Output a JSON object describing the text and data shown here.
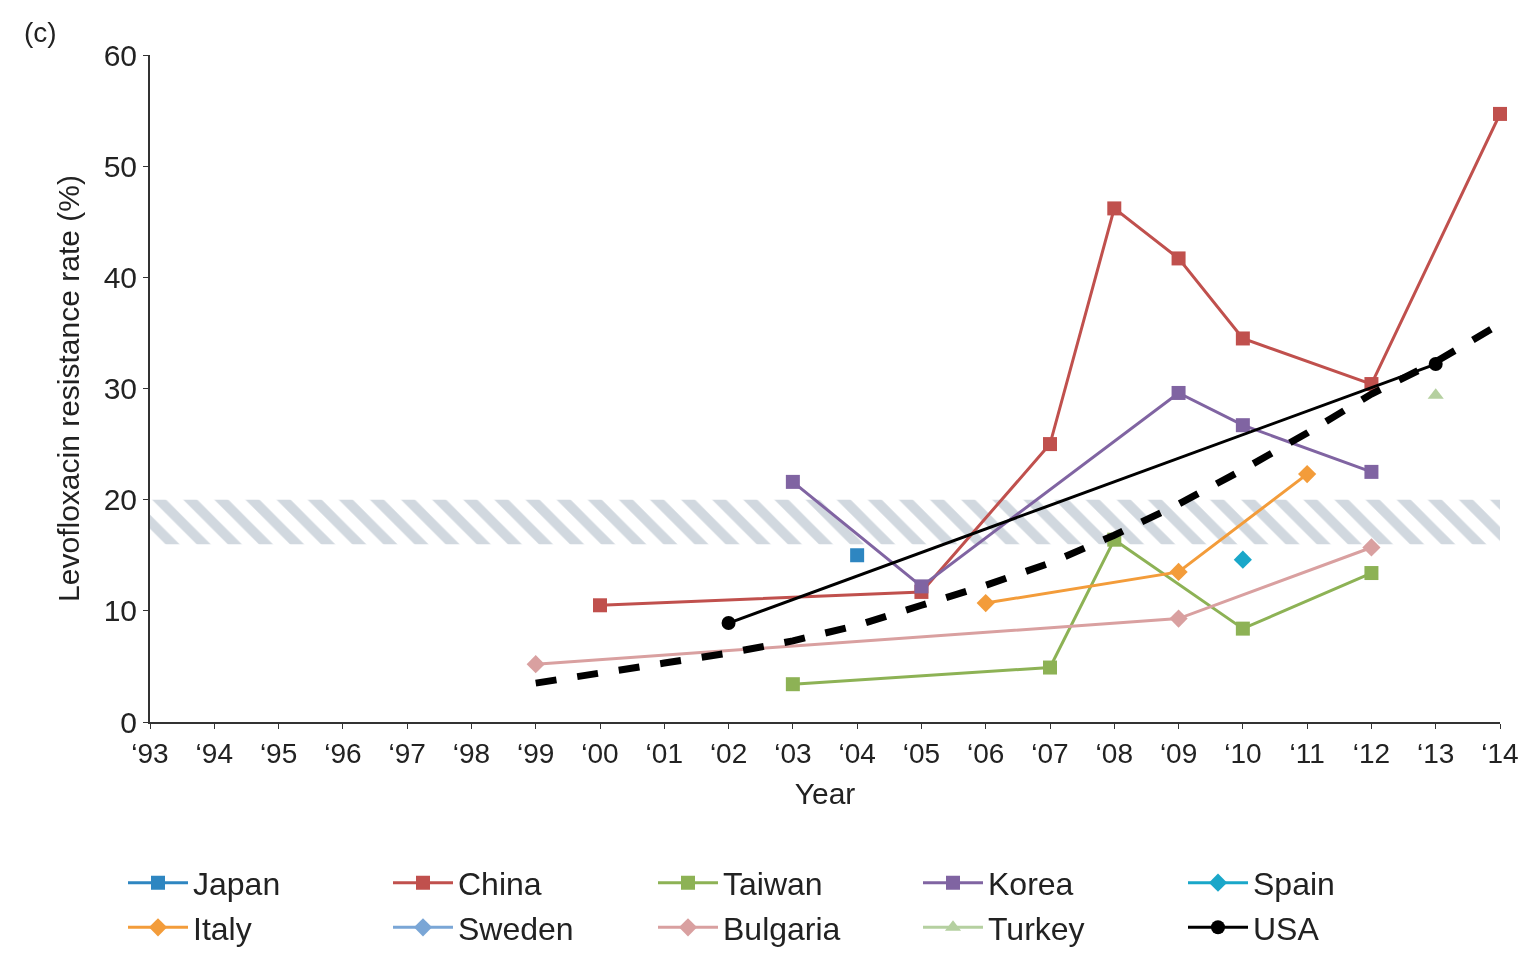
{
  "chart_data": {
    "type": "line",
    "xlabel": "Year",
    "ylabel": "Levofloxacin resistance rate (%)",
    "annotations": [
      "(c)"
    ],
    "categories": [
      "‘93",
      "‘94",
      "‘95",
      "‘96",
      "‘97",
      "‘98",
      "‘99",
      "‘00",
      "‘01",
      "‘02",
      "‘03",
      "‘04",
      "‘05",
      "‘06",
      "‘07",
      "‘08",
      "‘09",
      "‘10",
      "‘11",
      "‘12",
      "‘13",
      "‘14"
    ],
    "ylim": [
      0,
      60
    ],
    "yticks": [
      0,
      10,
      20,
      30,
      40,
      50,
      60
    ],
    "legend": "bottom",
    "bands": [
      {
        "axis": "y",
        "from": 16,
        "to": 20,
        "color": "#a3b1c0"
      }
    ],
    "series": [
      {
        "name": "Japan",
        "color": "#2e86c1",
        "marker": "square",
        "values": [
          null,
          null,
          null,
          null,
          null,
          null,
          null,
          null,
          null,
          null,
          null,
          15.0,
          null,
          null,
          null,
          null,
          null,
          null,
          null,
          null,
          null,
          null
        ]
      },
      {
        "name": "China",
        "color": "#c0504d",
        "marker": "square",
        "values": [
          null,
          null,
          null,
          null,
          null,
          null,
          null,
          10.5,
          null,
          null,
          null,
          null,
          11.7,
          null,
          25.0,
          46.2,
          41.7,
          34.5,
          null,
          30.4,
          null,
          54.7
        ]
      },
      {
        "name": "Taiwan",
        "color": "#8db255",
        "marker": "square",
        "values": [
          null,
          null,
          null,
          null,
          null,
          null,
          null,
          null,
          null,
          null,
          3.4,
          null,
          null,
          null,
          4.9,
          16.4,
          null,
          8.4,
          null,
          13.4,
          null,
          null
        ]
      },
      {
        "name": "Korea",
        "color": "#8064a2",
        "marker": "square",
        "values": [
          null,
          null,
          null,
          null,
          null,
          null,
          null,
          null,
          null,
          null,
          21.6,
          null,
          12.2,
          null,
          null,
          null,
          29.6,
          26.7,
          null,
          22.5,
          null,
          null
        ]
      },
      {
        "name": "Spain",
        "color": "#1aa7c9",
        "marker": "diamond",
        "values": [
          null,
          null,
          null,
          null,
          null,
          null,
          null,
          null,
          null,
          null,
          null,
          null,
          null,
          null,
          null,
          null,
          null,
          14.6,
          null,
          null,
          null,
          null
        ]
      },
      {
        "name": "Italy",
        "color": "#f39c3a",
        "marker": "diamond",
        "values": [
          null,
          null,
          null,
          null,
          null,
          null,
          null,
          null,
          null,
          null,
          null,
          null,
          null,
          10.7,
          null,
          null,
          13.5,
          null,
          22.3,
          null,
          null,
          null
        ]
      },
      {
        "name": "Sweden",
        "color": "#7aa6d6",
        "marker": "diamond",
        "values": [
          null,
          null,
          null,
          null,
          null,
          null,
          null,
          null,
          null,
          null,
          null,
          null,
          null,
          null,
          null,
          null,
          null,
          null,
          null,
          null,
          null,
          null
        ]
      },
      {
        "name": "Bulgaria",
        "color": "#d9a0a0",
        "marker": "diamond",
        "values": [
          null,
          null,
          null,
          null,
          null,
          null,
          5.2,
          null,
          null,
          null,
          null,
          null,
          null,
          null,
          null,
          null,
          9.3,
          null,
          null,
          15.7,
          null,
          null
        ]
      },
      {
        "name": "Turkey",
        "color": "#b5d0a0",
        "marker": "triangle",
        "values": [
          null,
          null,
          null,
          null,
          null,
          null,
          null,
          null,
          null,
          null,
          null,
          null,
          null,
          null,
          null,
          null,
          null,
          null,
          null,
          null,
          29.4,
          null
        ]
      },
      {
        "name": "USA",
        "color": "#000000",
        "marker": "circle",
        "values": [
          null,
          null,
          null,
          null,
          null,
          null,
          null,
          null,
          null,
          8.9,
          null,
          null,
          null,
          null,
          null,
          null,
          null,
          null,
          null,
          null,
          32.2,
          null
        ]
      },
      {
        "color": "#000000",
        "marker": "none",
        "line_style": "dashed",
        "values": [
          null,
          null,
          null,
          null,
          null,
          null,
          3.5,
          4.4,
          5.3,
          6.2,
          7.3,
          8.7,
          10.5,
          12.3,
          14.3,
          16.8,
          19.6,
          22.7,
          26.0,
          29.5,
          32.4,
          35.8
        ]
      }
    ]
  }
}
